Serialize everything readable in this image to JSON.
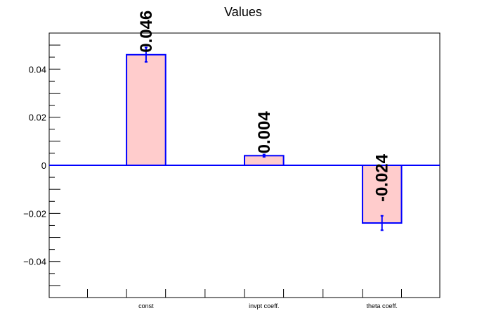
{
  "chart_data": {
    "type": "bar",
    "title": "Values",
    "xlabel": "",
    "ylabel": "",
    "categories": [
      "const",
      "invpt coeff.",
      "theta coeff."
    ],
    "values": [
      0.046,
      0.004,
      -0.024
    ],
    "errors": [
      0.003,
      0.0005,
      0.003
    ],
    "value_labels": [
      "0.046",
      "0.004",
      "-0.024"
    ],
    "ylim": [
      -0.055,
      0.055
    ],
    "yticks": [
      -0.04,
      -0.02,
      0,
      0.02,
      0.04
    ],
    "ytick_labels": [
      "−0.04",
      "−0.02",
      "0",
      "0.02",
      "0.04"
    ],
    "grid": false,
    "colors": {
      "bar_fill": "#ffcccc",
      "bar_edge": "#0000ff",
      "zero_line": "#0000ff",
      "axis": "#000000"
    }
  }
}
